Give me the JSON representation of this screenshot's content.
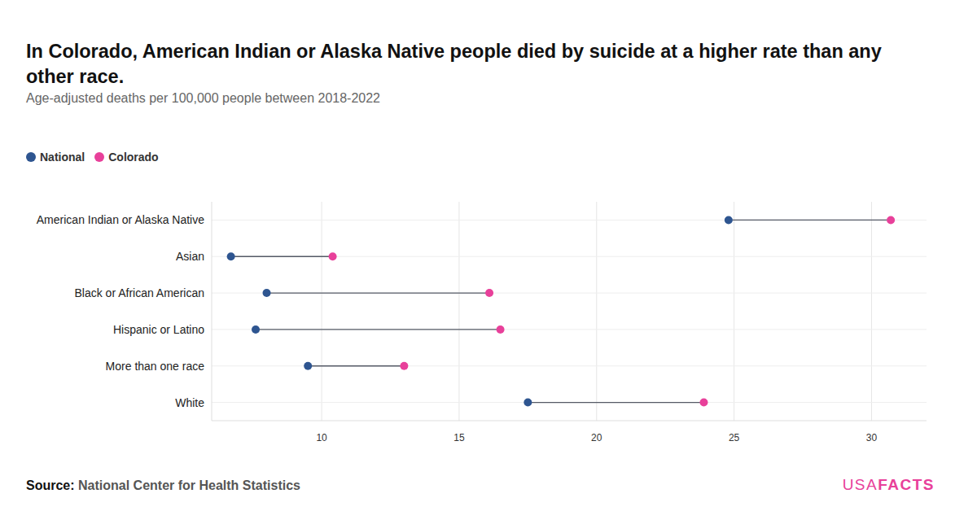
{
  "chart_data": {
    "type": "dumbbell",
    "title": "In Colorado, American Indian or Alaska Native people died by suicide at a higher rate than any other race.",
    "subtitle": "Age-adjusted deaths per 100,000 people between 2018-2022",
    "orientation": "horizontal",
    "grid": true,
    "legend": "top-left",
    "categories": [
      "American Indian or Alaska Native",
      "Asian",
      "Black or African American",
      "Hispanic or Latino",
      "More than one race",
      "White"
    ],
    "series": [
      {
        "name": "National",
        "color": "#2e5590",
        "marker": "circle",
        "values": [
          24.8,
          6.7,
          8.0,
          7.6,
          9.5,
          17.5
        ]
      },
      {
        "name": "Colorado",
        "color": "#e8409a",
        "marker": "circle",
        "values": [
          30.7,
          10.4,
          16.1,
          16.5,
          13.0,
          23.9
        ]
      }
    ],
    "xlim": [
      6,
      32
    ],
    "xticks": [
      10,
      15,
      20,
      25,
      30
    ],
    "source_label": "Source:",
    "source": "National Center for Health Statistics",
    "logo": [
      "USA",
      "FACTS"
    ]
  }
}
